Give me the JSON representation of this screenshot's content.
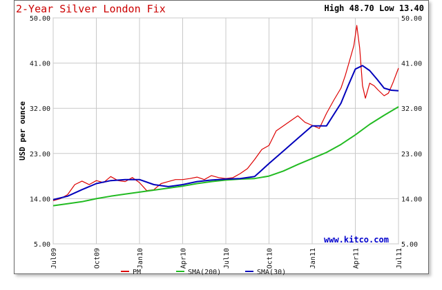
{
  "header": {
    "title": "2-Year Silver London Fix",
    "high_low": "High 48.70 Low 13.40"
  },
  "watermark": "www.kitco.com",
  "chart_data": {
    "type": "line",
    "title": "2-Year Silver London Fix",
    "ylabel": "USD per ounce",
    "xlabel": "",
    "ylim": [
      5,
      50
    ],
    "y_ticks": [
      "5.00",
      "14.00",
      "23.00",
      "32.00",
      "41.00",
      "50.00"
    ],
    "y_tick_values": [
      5,
      14,
      23,
      32,
      41,
      50
    ],
    "x_ticks": [
      "Jul09",
      "Oct09",
      "Jan10",
      "Apr10",
      "Jul10",
      "Oct10",
      "Jan11",
      "Apr11",
      "Jul11"
    ],
    "x_tick_values": [
      0,
      3,
      6,
      9,
      12,
      15,
      18,
      21,
      24
    ],
    "x_unit": "months since Jul09",
    "grid": true,
    "legend_position": "bottom",
    "series": [
      {
        "name": "PM",
        "color": "#dd0000",
        "x": [
          0,
          0.5,
          1,
          1.5,
          2,
          2.5,
          3,
          3.5,
          4,
          4.5,
          5,
          5.5,
          6,
          6.5,
          7,
          7.5,
          8,
          8.5,
          9,
          9.5,
          10,
          10.5,
          11,
          11.5,
          12,
          12.5,
          13,
          13.5,
          14,
          14.5,
          15,
          15.5,
          16,
          16.5,
          17,
          17.5,
          18,
          18.5,
          19,
          19.5,
          20,
          20.3,
          20.6,
          20.9,
          21.1,
          21.3,
          21.5,
          21.7,
          22,
          22.3,
          22.6,
          23,
          23.3,
          23.6,
          24
        ],
        "values": [
          13.6,
          14.0,
          14.8,
          16.8,
          17.5,
          16.8,
          17.6,
          17.2,
          18.4,
          17.6,
          17.4,
          18.2,
          17.2,
          15.6,
          15.8,
          17.0,
          17.4,
          17.8,
          17.8,
          18.0,
          18.3,
          17.8,
          18.6,
          18.2,
          18.0,
          18.2,
          19.0,
          20.0,
          21.8,
          23.8,
          24.6,
          27.5,
          28.5,
          29.5,
          30.5,
          29.2,
          28.6,
          28.0,
          31.0,
          33.6,
          36.0,
          38.5,
          41.5,
          44.5,
          48.5,
          44.0,
          36.5,
          34.0,
          37.0,
          36.5,
          35.6,
          34.5,
          35.0,
          37.0,
          40.0
        ]
      },
      {
        "name": "SMA(200)",
        "color": "#22bb22",
        "x": [
          0,
          1,
          2,
          3,
          4,
          5,
          6,
          7,
          8,
          9,
          10,
          11,
          12,
          13,
          14,
          15,
          16,
          17,
          18,
          19,
          20,
          21,
          22,
          23,
          24
        ],
        "values": [
          12.6,
          13.0,
          13.4,
          14.0,
          14.5,
          14.9,
          15.3,
          15.7,
          16.1,
          16.5,
          17.0,
          17.4,
          17.7,
          17.9,
          18.0,
          18.5,
          19.5,
          20.8,
          22.0,
          23.2,
          24.8,
          26.7,
          28.8,
          30.6,
          32.3
        ]
      },
      {
        "name": "SMA(30)",
        "color": "#0000bb",
        "x": [
          0,
          1,
          2,
          3,
          4,
          5,
          6,
          7,
          8,
          9,
          10,
          11,
          12,
          13,
          14,
          15,
          16,
          17,
          18,
          19,
          20,
          20.5,
          21,
          21.5,
          22,
          22.5,
          23,
          23.5,
          24
        ],
        "values": [
          13.8,
          14.5,
          15.8,
          17.0,
          17.6,
          17.8,
          17.8,
          16.8,
          16.4,
          16.8,
          17.4,
          17.7,
          17.9,
          18.0,
          18.4,
          21.0,
          23.5,
          26.0,
          28.5,
          28.5,
          33.0,
          36.5,
          39.8,
          40.5,
          39.5,
          37.8,
          36.0,
          35.6,
          35.5
        ]
      }
    ]
  }
}
